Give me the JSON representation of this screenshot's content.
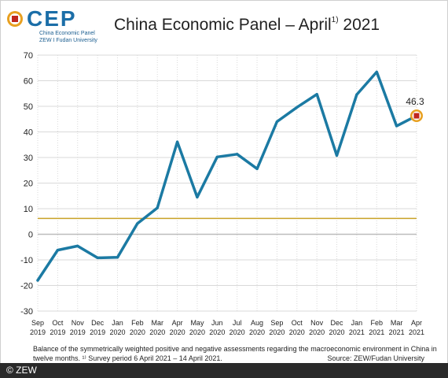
{
  "header": {
    "logo_text": "CEP",
    "logo_sub1": "China Economic Panel",
    "logo_sub2": "ZEW I Fudan University",
    "title": "China Economic Panel – April",
    "title_sup": "1)",
    "title_year": " 2021"
  },
  "footer": {
    "note_line1": "Balance of the symmetrically weighted positive and negative assessments regarding the macroeconomic environment in China in",
    "note_line2": "twelve months. ¹⁾ Survey period 6 April 2021 – 14 April 2021.",
    "source": "Source: ZEW/Fudan University",
    "copyright": "© ZEW"
  },
  "colors": {
    "series": "#1b7aa3",
    "reference_line": "#c9a227",
    "zero_line": "#bdbdbd",
    "grid": "#d9d9d9",
    "marker_outer": "#e8a020",
    "marker_inner": "#c0271e",
    "logo_blue": "#1b6ea8"
  },
  "chart_data": {
    "type": "line",
    "title": "China Economic Panel – April 2021",
    "categories": [
      [
        "Sep",
        "2019"
      ],
      [
        "Oct",
        "2019"
      ],
      [
        "Nov",
        "2019"
      ],
      [
        "Dec",
        "2019"
      ],
      [
        "Jan",
        "2020"
      ],
      [
        "Feb",
        "2020"
      ],
      [
        "Mar",
        "2020"
      ],
      [
        "Apr",
        "2020"
      ],
      [
        "May",
        "2020"
      ],
      [
        "Jun",
        "2020"
      ],
      [
        "Jul",
        "2020"
      ],
      [
        "Aug",
        "2020"
      ],
      [
        "Sep",
        "2020"
      ],
      [
        "Oct",
        "2020"
      ],
      [
        "Nov",
        "2020"
      ],
      [
        "Dec",
        "2020"
      ],
      [
        "Jan",
        "2021"
      ],
      [
        "Feb",
        "2021"
      ],
      [
        "Mar",
        "2021"
      ],
      [
        "Apr",
        "2021"
      ]
    ],
    "series": [
      {
        "values": [
          -18,
          -6.2,
          -4.6,
          -9.2,
          -9.0,
          4.2,
          10.3,
          36.1,
          14.5,
          30.2,
          31.3,
          25.6,
          44.0,
          49.6,
          54.7,
          30.8,
          54.6,
          63.4,
          42.3,
          46.3
        ]
      }
    ],
    "reference_value": 6.2,
    "last_label": "46.3",
    "yticks": [
      -30,
      -20,
      -10,
      0,
      10,
      20,
      30,
      40,
      50,
      60,
      70
    ],
    "ylim": [
      -30,
      70
    ],
    "xlabel": "",
    "ylabel": "",
    "grid": true
  }
}
